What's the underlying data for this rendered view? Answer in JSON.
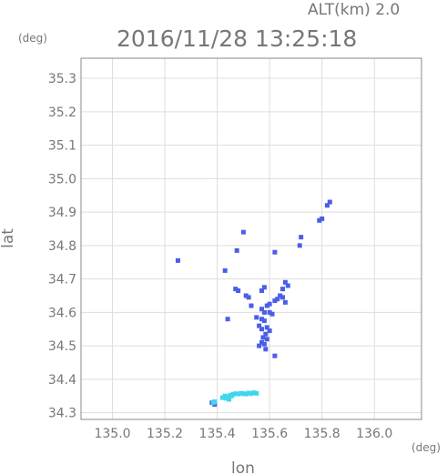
{
  "header": {
    "alt_label": "ALT(km) 2.0",
    "timestamp": "2016/11/28 13:25:18"
  },
  "chart_data": {
    "type": "scatter",
    "xlabel": "lon",
    "ylabel": "lat",
    "x_unit": "(deg)",
    "y_unit": "(deg)",
    "xlim": [
      134.88,
      136.18
    ],
    "ylim": [
      34.28,
      35.36
    ],
    "x_ticks": [
      "135.0",
      "135.2",
      "135.4",
      "135.6",
      "135.8",
      "136.0"
    ],
    "x_tick_values": [
      135.0,
      135.2,
      135.4,
      135.6,
      135.8,
      136.0
    ],
    "y_ticks": [
      "34.3",
      "34.4",
      "34.5",
      "34.6",
      "34.7",
      "34.8",
      "34.9",
      "35.0",
      "35.1",
      "35.2",
      "35.3"
    ],
    "y_tick_values": [
      34.3,
      34.4,
      34.5,
      34.6,
      34.7,
      34.8,
      34.9,
      35.0,
      35.1,
      35.2,
      35.3
    ],
    "grid": true,
    "colors": {
      "blue": "#4a5ee8",
      "cyan": "#3fd6ee",
      "frame": "#888888",
      "grid": "#dddddd"
    },
    "series": [
      {
        "color": "blue",
        "points": [
          [
            135.83,
            34.93
          ],
          [
            135.82,
            34.92
          ],
          [
            135.8,
            34.88
          ],
          [
            135.79,
            34.875
          ],
          [
            135.72,
            34.825
          ],
          [
            135.715,
            34.8
          ],
          [
            135.62,
            34.78
          ],
          [
            135.5,
            34.84
          ],
          [
            135.25,
            34.755
          ],
          [
            135.43,
            34.725
          ],
          [
            135.475,
            34.785
          ],
          [
            135.66,
            34.69
          ],
          [
            135.67,
            34.68
          ],
          [
            135.65,
            34.67
          ],
          [
            135.64,
            34.65
          ],
          [
            135.63,
            34.64
          ],
          [
            135.62,
            34.635
          ],
          [
            135.6,
            34.625
          ],
          [
            135.59,
            34.62
          ],
          [
            135.57,
            34.61
          ],
          [
            135.58,
            34.6
          ],
          [
            135.6,
            34.6
          ],
          [
            135.61,
            34.595
          ],
          [
            135.55,
            34.585
          ],
          [
            135.57,
            34.58
          ],
          [
            135.58,
            34.575
          ],
          [
            135.56,
            34.56
          ],
          [
            135.57,
            34.55
          ],
          [
            135.59,
            34.555
          ],
          [
            135.6,
            34.545
          ],
          [
            135.585,
            34.535
          ],
          [
            135.575,
            34.525
          ],
          [
            135.59,
            34.52
          ],
          [
            135.57,
            34.51
          ],
          [
            135.58,
            34.505
          ],
          [
            135.56,
            34.5
          ],
          [
            135.585,
            34.49
          ],
          [
            135.62,
            34.47
          ],
          [
            135.47,
            34.67
          ],
          [
            135.48,
            34.665
          ],
          [
            135.52,
            34.645
          ],
          [
            135.51,
            34.65
          ],
          [
            135.57,
            34.665
          ],
          [
            135.58,
            34.675
          ],
          [
            135.44,
            34.58
          ],
          [
            135.53,
            34.62
          ],
          [
            135.65,
            34.645
          ],
          [
            135.66,
            34.63
          ],
          [
            135.38,
            34.33
          ],
          [
            135.39,
            34.325
          ],
          [
            135.43,
            34.345
          ]
        ]
      },
      {
        "color": "cyan",
        "points": [
          [
            135.42,
            34.345
          ],
          [
            135.43,
            34.35
          ],
          [
            135.44,
            34.348
          ],
          [
            135.45,
            34.352
          ],
          [
            135.46,
            34.355
          ],
          [
            135.47,
            34.357
          ],
          [
            135.48,
            34.356
          ],
          [
            135.49,
            34.358
          ],
          [
            135.5,
            34.357
          ],
          [
            135.51,
            34.356
          ],
          [
            135.52,
            34.359
          ],
          [
            135.53,
            34.357
          ],
          [
            135.54,
            34.36
          ],
          [
            135.55,
            34.358
          ],
          [
            135.385,
            34.33
          ],
          [
            135.39,
            34.333
          ],
          [
            135.435,
            34.343
          ],
          [
            135.445,
            34.34
          ],
          [
            135.455,
            34.35
          ]
        ]
      }
    ]
  }
}
